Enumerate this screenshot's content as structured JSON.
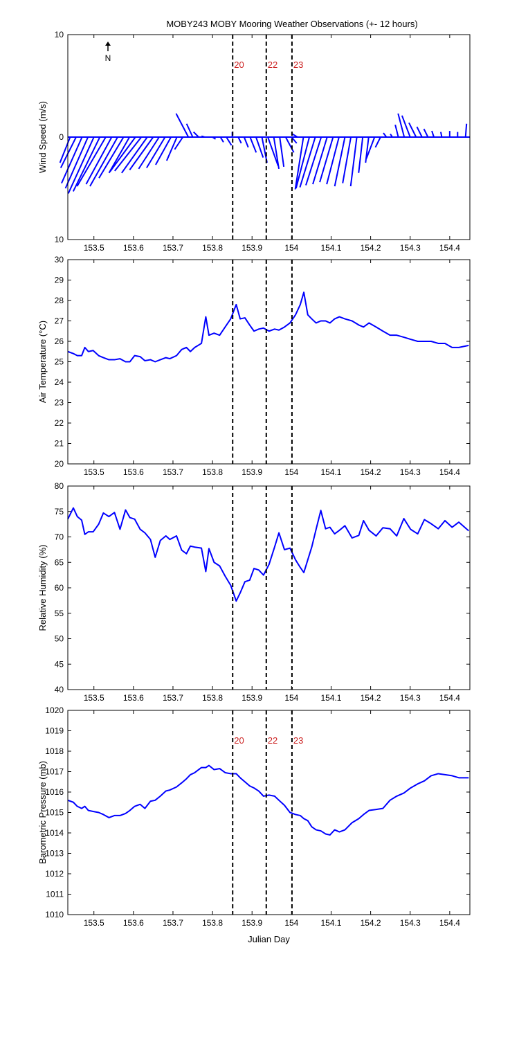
{
  "chart_data": [
    {
      "type": "quiver",
      "title": "MOBY243 MOBY Mooring Weather Observations (+- 12 hours)",
      "ylabel": "Wind Speed (m/s)",
      "north_label": "N",
      "color": "#0000ff",
      "x": [
        153.44,
        153.455,
        153.47,
        153.485,
        153.5,
        153.515,
        153.53,
        153.545,
        153.56,
        153.575,
        153.59,
        153.605,
        153.62,
        153.635,
        153.65,
        153.665,
        153.68,
        153.695,
        153.71,
        153.725,
        153.739,
        153.75,
        153.765,
        153.78,
        153.8,
        153.82,
        153.835,
        153.85,
        153.865,
        153.88,
        153.895,
        153.91,
        153.925,
        153.94,
        153.955,
        153.97,
        153.985,
        154.0,
        154.015,
        154.03,
        154.045,
        154.06,
        154.075,
        154.09,
        154.105,
        154.12,
        154.135,
        154.15,
        154.165,
        154.18,
        154.195,
        154.21,
        154.225,
        154.24,
        154.255,
        154.27,
        154.285,
        154.3,
        154.315,
        154.33,
        154.345,
        154.36,
        154.38,
        154.4,
        154.42,
        154.44
      ],
      "u": [
        -1,
        -1.5,
        -2,
        -2.2,
        -2.5,
        -2.6,
        -2.8,
        -2.5,
        -2.7,
        -2.4,
        -2,
        -2.5,
        -2.6,
        -2.5,
        -2.3,
        -2,
        -1.8,
        -1.5,
        -1,
        -0.8,
        -1.2,
        -0.6,
        -0.5,
        -0.3,
        0.3,
        0.3,
        0.5,
        0,
        0.3,
        0.4,
        0.6,
        0.7,
        0.5,
        1,
        0.5,
        0.4,
        0.8,
        0.5,
        -0.5,
        -0.8,
        -1.3,
        -1.5,
        -1.5,
        -1.4,
        -1.3,
        -1.2,
        -1.0,
        -0.8,
        -0.6,
        -0.4,
        -0.3,
        -0.8,
        -0.5,
        -0.3,
        -0.2,
        -0.3,
        -0.6,
        -0.8,
        -0.7,
        -0.5,
        -0.4,
        -0.2,
        -0.1,
        0,
        0,
        0.1
      ],
      "v": [
        -2.5,
        -3,
        -4.5,
        -5,
        -5.5,
        -5.3,
        -4.8,
        -4.6,
        -4.8,
        -4.0,
        -3.5,
        -3.4,
        -3.3,
        -3.5,
        -3.2,
        -3.1,
        -3.0,
        -2.7,
        -2.3,
        -1.2,
        2.3,
        1.3,
        0.5,
        0.1,
        -0.2,
        -0.5,
        -0.8,
        0.5,
        -0.6,
        -1,
        -1.5,
        -2,
        -2.5,
        -2.8,
        -3.1,
        -2.9,
        -1.5,
        -0.6,
        0.3,
        -5.1,
        -5.0,
        -4.9,
        -4.7,
        -4.6,
        -4.4,
        -4.6,
        -4.8,
        -4.5,
        -4.8,
        -3.5,
        -2.5,
        -2.1,
        -1,
        0.4,
        0.3,
        1.2,
        2.3,
        2.1,
        1.4,
        1.0,
        0.8,
        0.6,
        0.5,
        0.6,
        0.5,
        1.3
      ],
      "xlim": [
        153.434,
        154.451
      ],
      "xticks": [
        153.5,
        153.6,
        153.7,
        153.8,
        153.9,
        154,
        154.1,
        154.2,
        154.3,
        154.4
      ],
      "ylim": [
        -10,
        10
      ],
      "yticks": [
        {
          "value": 10,
          "label": "10"
        },
        0,
        {
          "value": -10,
          "label": "10"
        }
      ],
      "vlines": [
        153.851,
        153.936,
        154.001
      ],
      "vline_labels": [
        "20",
        "22",
        "23"
      ]
    },
    {
      "type": "line",
      "ylabel": "Air Temperature (°C)",
      "color": "#0000ff",
      "x": [
        153.434,
        153.448,
        153.458,
        153.469,
        153.477,
        153.486,
        153.498,
        153.512,
        153.524,
        153.538,
        153.552,
        153.566,
        153.58,
        153.591,
        153.603,
        153.617,
        153.629,
        153.643,
        153.655,
        153.668,
        153.682,
        153.692,
        153.709,
        153.722,
        153.734,
        153.744,
        153.755,
        153.772,
        153.783,
        153.791,
        153.804,
        153.818,
        153.832,
        153.846,
        153.86,
        153.87,
        153.882,
        153.894,
        153.905,
        153.917,
        153.929,
        153.943,
        153.957,
        153.968,
        153.982,
        153.996,
        154.01,
        154.022,
        154.031,
        154.041,
        154.051,
        154.062,
        154.074,
        154.086,
        154.097,
        154.109,
        154.121,
        154.135,
        154.153,
        154.17,
        154.182,
        154.196,
        154.214,
        154.231,
        154.249,
        154.266,
        154.284,
        154.301,
        154.319,
        154.336,
        154.353,
        154.371,
        154.388,
        154.406,
        154.423,
        154.448
      ],
      "values": [
        25.5,
        25.4,
        25.3,
        25.3,
        25.7,
        25.5,
        25.55,
        25.3,
        25.2,
        25.1,
        25.1,
        25.15,
        25.0,
        25.0,
        25.3,
        25.25,
        25.05,
        25.1,
        25.0,
        25.1,
        25.2,
        25.15,
        25.3,
        25.6,
        25.7,
        25.5,
        25.7,
        25.9,
        27.2,
        26.3,
        26.4,
        26.3,
        26.7,
        27.1,
        27.8,
        27.1,
        27.15,
        26.8,
        26.5,
        26.6,
        26.65,
        26.5,
        26.6,
        26.55,
        26.7,
        26.9,
        27.3,
        27.8,
        28.4,
        27.3,
        27.1,
        26.9,
        27.0,
        27.0,
        26.9,
        27.1,
        27.2,
        27.1,
        27.0,
        26.8,
        26.7,
        26.9,
        26.7,
        26.5,
        26.3,
        26.3,
        26.2,
        26.1,
        26.0,
        26.0,
        26.0,
        25.9,
        25.9,
        25.7,
        25.7,
        25.8
      ],
      "xlim": [
        153.434,
        154.451
      ],
      "xticks": [
        153.5,
        153.6,
        153.7,
        153.8,
        153.9,
        154,
        154.1,
        154.2,
        154.3,
        154.4
      ],
      "ylim": [
        20,
        30
      ],
      "yticks": [
        20,
        21,
        22,
        23,
        24,
        25,
        26,
        27,
        28,
        29,
        30
      ],
      "vlines": [
        153.851,
        153.936,
        154.001
      ]
    },
    {
      "type": "line",
      "ylabel": "Relative Humidity (%)",
      "color": "#0000ff",
      "x": [
        153.434,
        153.448,
        153.458,
        153.469,
        153.477,
        153.486,
        153.498,
        153.512,
        153.524,
        153.538,
        153.552,
        153.566,
        153.58,
        153.591,
        153.603,
        153.617,
        153.629,
        153.643,
        153.655,
        153.668,
        153.682,
        153.692,
        153.709,
        153.722,
        153.734,
        153.744,
        153.755,
        153.772,
        153.783,
        153.791,
        153.804,
        153.818,
        153.832,
        153.846,
        153.86,
        153.87,
        153.882,
        153.894,
        153.905,
        153.917,
        153.929,
        153.943,
        153.957,
        153.968,
        153.982,
        153.996,
        154.01,
        154.022,
        154.031,
        154.041,
        154.051,
        154.062,
        154.074,
        154.086,
        154.097,
        154.109,
        154.121,
        154.135,
        154.153,
        154.17,
        154.182,
        154.196,
        154.214,
        154.231,
        154.249,
        154.266,
        154.284,
        154.301,
        154.319,
        154.336,
        154.353,
        154.371,
        154.388,
        154.406,
        154.423,
        154.448
      ],
      "values": [
        73.5,
        75.7,
        74,
        73.3,
        70.5,
        71,
        71,
        72.5,
        74.7,
        74,
        74.8,
        71.5,
        75.3,
        73.8,
        73.5,
        71.5,
        70.8,
        69.5,
        66,
        69.3,
        70.2,
        69.5,
        70.2,
        67.4,
        66.7,
        68.2,
        68,
        67.8,
        63.2,
        67.7,
        65,
        64.3,
        62.3,
        60.5,
        57.4,
        59,
        61.2,
        61.5,
        63.8,
        63.5,
        62.5,
        64.6,
        68,
        70.8,
        67.5,
        67.8,
        65.5,
        64,
        63,
        65.5,
        68,
        71.5,
        75.2,
        71.6,
        71.9,
        70.6,
        71.3,
        72.2,
        69.8,
        70.3,
        73.2,
        71.3,
        70.2,
        71.8,
        71.6,
        70.2,
        73.6,
        71.5,
        70.6,
        73.4,
        72.6,
        71.6,
        73.2,
        71.9,
        72.9,
        71.2
      ],
      "xlim": [
        153.434,
        154.451
      ],
      "xticks": [
        153.5,
        153.6,
        153.7,
        153.8,
        153.9,
        154,
        154.1,
        154.2,
        154.3,
        154.4
      ],
      "ylim": [
        40,
        80
      ],
      "yticks": [
        40,
        45,
        50,
        55,
        60,
        65,
        70,
        75,
        80
      ],
      "vlines": [
        153.851,
        153.936,
        154.001
      ]
    },
    {
      "type": "line",
      "ylabel": "Barometric Pressure (mb)",
      "xlabel": "Julian Day",
      "color": "#0000ff",
      "x": [
        153.434,
        153.448,
        153.458,
        153.469,
        153.477,
        153.486,
        153.498,
        153.512,
        153.524,
        153.538,
        153.552,
        153.566,
        153.58,
        153.591,
        153.603,
        153.617,
        153.629,
        153.643,
        153.655,
        153.668,
        153.682,
        153.692,
        153.709,
        153.722,
        153.734,
        153.744,
        153.755,
        153.772,
        153.783,
        153.791,
        153.804,
        153.818,
        153.832,
        153.846,
        153.86,
        153.87,
        153.882,
        153.894,
        153.905,
        153.917,
        153.929,
        153.943,
        153.957,
        153.968,
        153.982,
        153.996,
        154.01,
        154.022,
        154.031,
        154.041,
        154.051,
        154.062,
        154.074,
        154.086,
        154.097,
        154.109,
        154.121,
        154.135,
        154.153,
        154.17,
        154.182,
        154.196,
        154.214,
        154.231,
        154.249,
        154.266,
        154.284,
        154.301,
        154.319,
        154.336,
        154.353,
        154.371,
        154.388,
        154.406,
        154.423,
        154.448
      ],
      "values": [
        1015.6,
        1015.5,
        1015.3,
        1015.2,
        1015.3,
        1015.1,
        1015.05,
        1015.0,
        1014.9,
        1014.75,
        1014.85,
        1014.85,
        1014.95,
        1015.1,
        1015.3,
        1015.4,
        1015.2,
        1015.55,
        1015.6,
        1015.8,
        1016.05,
        1016.1,
        1016.25,
        1016.45,
        1016.65,
        1016.85,
        1016.95,
        1017.2,
        1017.2,
        1017.3,
        1017.1,
        1017.15,
        1016.95,
        1016.9,
        1016.9,
        1016.7,
        1016.5,
        1016.3,
        1016.2,
        1016.05,
        1015.8,
        1015.85,
        1015.8,
        1015.6,
        1015.35,
        1015.0,
        1014.9,
        1014.85,
        1014.7,
        1014.6,
        1014.3,
        1014.15,
        1014.1,
        1013.95,
        1013.9,
        1014.15,
        1014.05,
        1014.15,
        1014.5,
        1014.7,
        1014.9,
        1015.1,
        1015.15,
        1015.2,
        1015.6,
        1015.8,
        1015.95,
        1016.2,
        1016.4,
        1016.55,
        1016.8,
        1016.9,
        1016.85,
        1016.8,
        1016.7,
        1016.7
      ],
      "xlim": [
        153.434,
        154.451
      ],
      "xticks": [
        153.5,
        153.6,
        153.7,
        153.8,
        153.9,
        154,
        154.1,
        154.2,
        154.3,
        154.4
      ],
      "ylim": [
        1010,
        1020
      ],
      "yticks": [
        1010,
        1011,
        1012,
        1013,
        1014,
        1015,
        1016,
        1017,
        1018,
        1019,
        1020
      ],
      "vlines": [
        153.851,
        153.936,
        154.001
      ],
      "vline_labels": [
        "20",
        "22",
        "23"
      ]
    }
  ]
}
